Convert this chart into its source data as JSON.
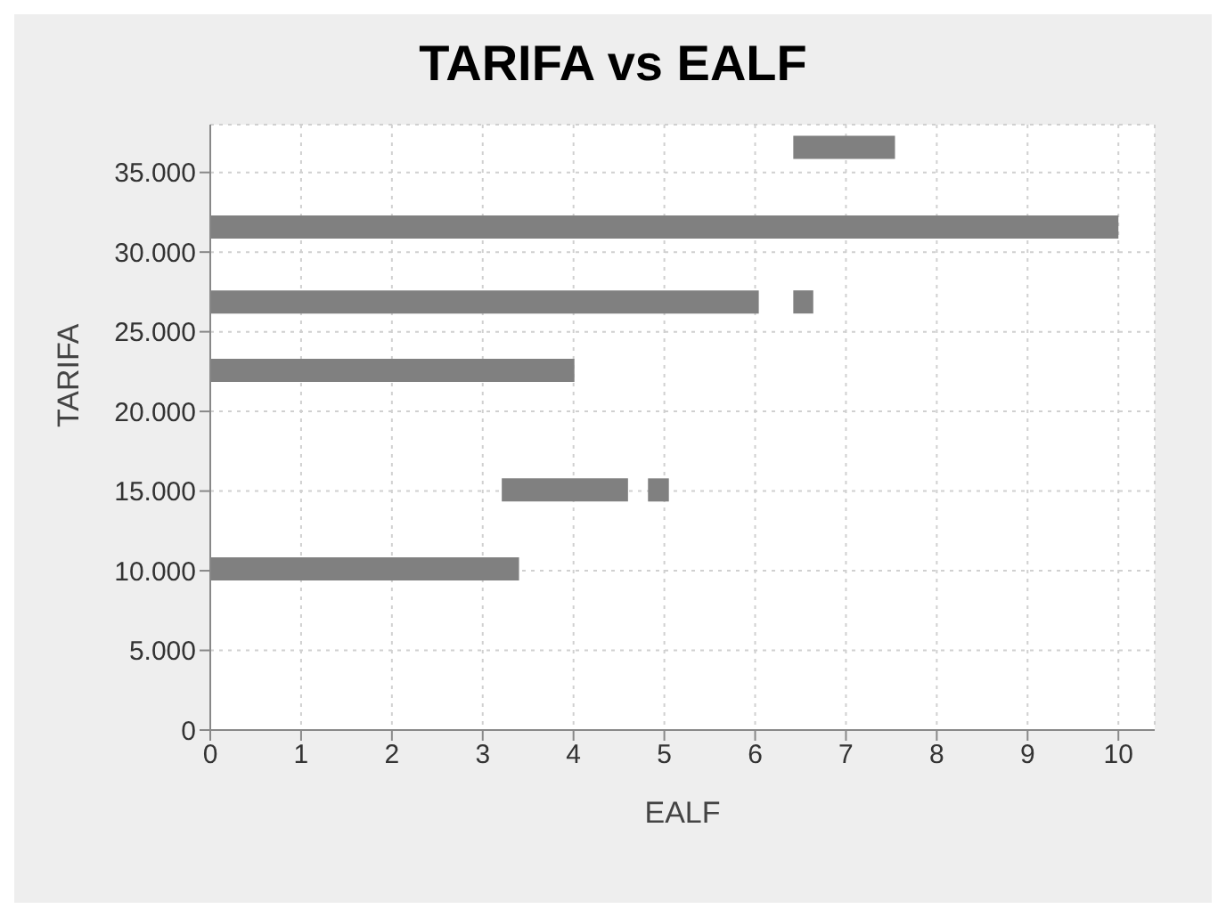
{
  "chart_data": {
    "type": "bar",
    "orientation": "horizontal",
    "title": "TARIFA vs EALF",
    "xlabel": "EALF",
    "ylabel": "TARIFA",
    "series": [
      {
        "color": "#808080",
        "x": [
          36600,
          31600,
          26900,
          22600,
          15100,
          10150
        ],
        "values": [
          1.12,
          10,
          6.04,
          4.01,
          1.39,
          3.4
        ],
        "base": [
          6.42,
          0,
          0,
          0,
          3.21,
          0
        ]
      },
      {
        "color": "#808080",
        "x": [
          26900,
          15100
        ],
        "values": [
          0.22,
          0.23
        ],
        "base": [
          6.42,
          4.82
        ]
      }
    ],
    "xlim": [
      0,
      10.4
    ],
    "xticks": [
      0,
      1,
      2,
      3,
      4,
      5,
      6,
      7,
      8,
      9,
      10
    ],
    "ylim": [
      0,
      38000
    ],
    "yticks": [
      0,
      {
        "value": 5000,
        "label": "5.000"
      },
      {
        "value": 10000,
        "label": "10.000"
      },
      {
        "value": 15000,
        "label": "15.000"
      },
      {
        "value": 20000,
        "label": "20.000"
      },
      {
        "value": 25000,
        "label": "25.000"
      },
      {
        "value": 30000,
        "label": "30.000"
      },
      {
        "value": 35000,
        "label": "35.000"
      }
    ],
    "grid": true,
    "legend": false
  }
}
